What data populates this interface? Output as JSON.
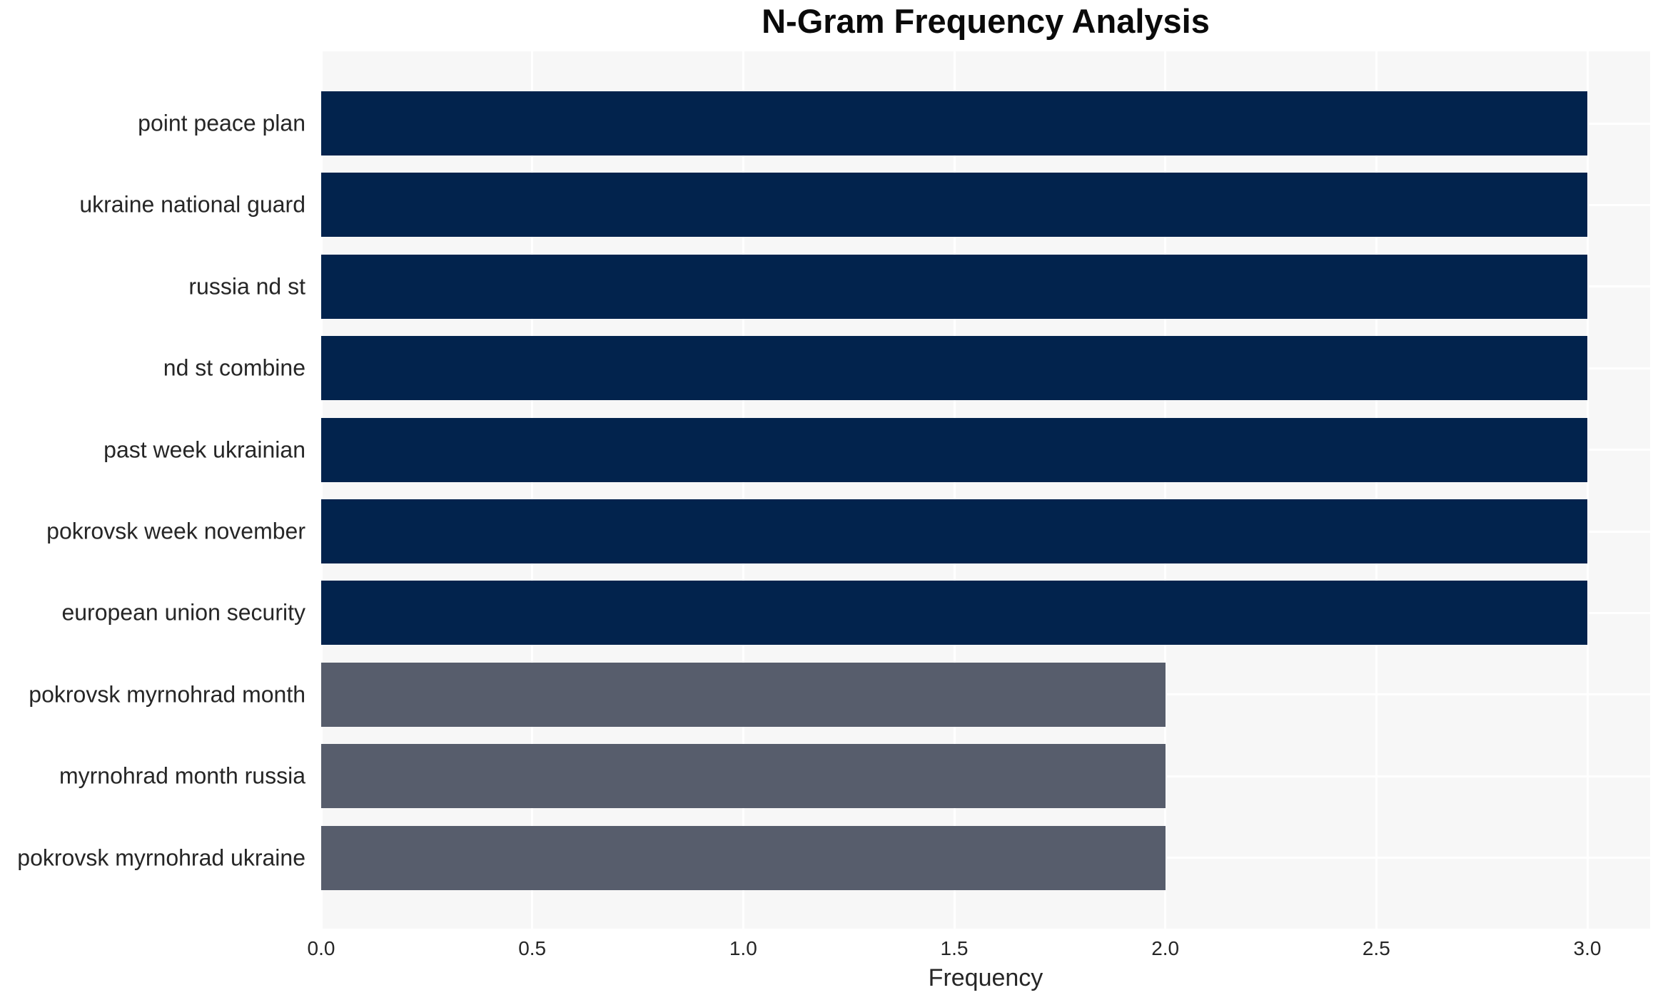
{
  "chart_data": {
    "type": "bar",
    "orientation": "horizontal",
    "title": "N-Gram Frequency Analysis",
    "xlabel": "Frequency",
    "ylabel": "",
    "categories": [
      "point peace plan",
      "ukraine national guard",
      "russia nd st",
      "nd st combine",
      "past week ukrainian",
      "pokrovsk week november",
      "european union security",
      "pokrovsk myrnohrad month",
      "myrnohrad month russia",
      "pokrovsk myrnohrad ukraine"
    ],
    "values": [
      3,
      3,
      3,
      3,
      3,
      3,
      3,
      2,
      2,
      2
    ],
    "bar_colors": [
      "#02234d",
      "#02234d",
      "#02234d",
      "#02234d",
      "#02234d",
      "#02234d",
      "#02234d",
      "#575d6c",
      "#575d6c",
      "#575d6c"
    ],
    "xlim": [
      0,
      3.15
    ],
    "xticks": [
      0.0,
      0.5,
      1.0,
      1.5,
      2.0,
      2.5,
      3.0
    ],
    "xtick_labels": [
      "0.0",
      "0.5",
      "1.0",
      "1.5",
      "2.0",
      "2.5",
      "3.0"
    ],
    "grid": true,
    "legend_visible": false
  },
  "colors": {
    "bar_high_frequency": "#02234d",
    "bar_low_frequency": "#575d6c",
    "plot_background": "#f7f7f7",
    "gridline": "#ffffff",
    "page_background": "#ffffff",
    "text": "#262626",
    "title_text": "#0a0a0a"
  }
}
